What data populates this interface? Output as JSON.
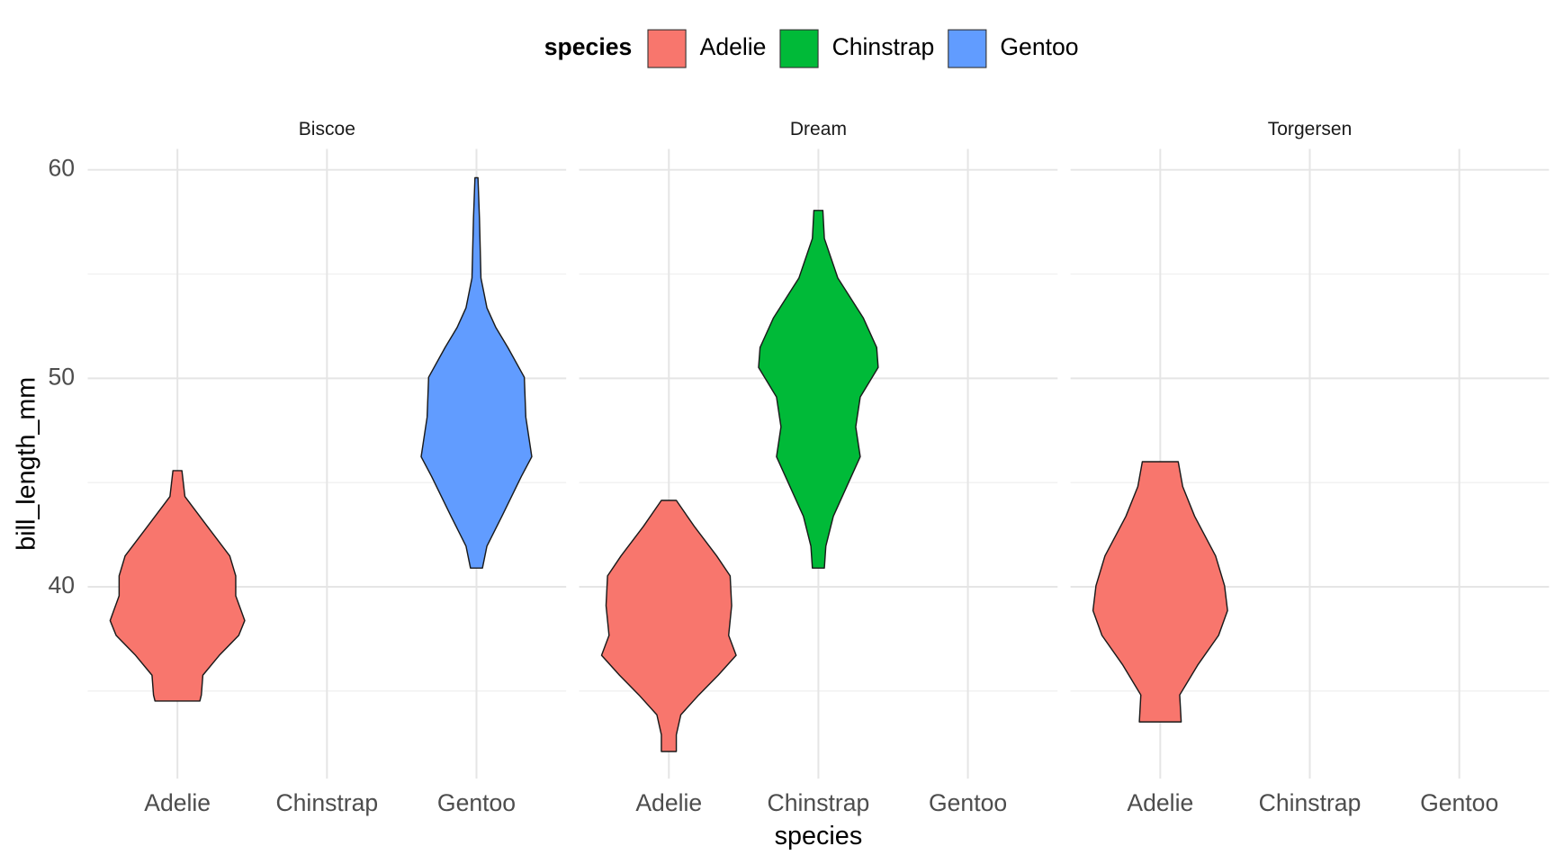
{
  "chart_data": {
    "type": "violin",
    "legend_title": "species",
    "x_label": "species",
    "y_label": "bill_length_mm",
    "categories": [
      "Adelie",
      "Chinstrap",
      "Gentoo"
    ],
    "series": [
      {
        "name": "Adelie",
        "color": "#F8766D"
      },
      {
        "name": "Chinstrap",
        "color": "#00BA38"
      },
      {
        "name": "Gentoo",
        "color": "#619CFF"
      }
    ],
    "ylim": [
      30.8,
      61
    ],
    "yticks": [
      40,
      50,
      60
    ],
    "minor_yticks": [
      35,
      45,
      55
    ],
    "grid": true,
    "legend_position": "top",
    "facets": [
      {
        "title": "Biscoe",
        "violins": [
          {
            "species": "Adelie",
            "y": [
              45.57,
              44.33,
              42.9,
              41.48,
              40.52,
              39.57,
              38.38,
              37.67,
              36.71,
              35.76,
              34.81,
              34.52
            ],
            "width": [
              0.03,
              0.05,
              0.2,
              0.35,
              0.39,
              0.39,
              0.45,
              0.41,
              0.28,
              0.17,
              0.16,
              0.15
            ]
          },
          {
            "species": "Gentoo",
            "y": [
              59.62,
              57.67,
              54.81,
              53.38,
              52.43,
              51.48,
              50.05,
              48.14,
              46.24,
              45.29,
              43.38,
              41.95,
              40.9
            ],
            "width": [
              0.01,
              0.02,
              0.03,
              0.07,
              0.13,
              0.21,
              0.32,
              0.33,
              0.37,
              0.3,
              0.17,
              0.07,
              0.04
            ]
          }
        ]
      },
      {
        "title": "Dream",
        "violins": [
          {
            "species": "Adelie",
            "y": [
              44.14,
              42.9,
              41.48,
              40.52,
              39.1,
              37.67,
              36.71,
              35.76,
              34.81,
              33.86,
              32.9,
              32.1
            ],
            "width": [
              0.05,
              0.17,
              0.32,
              0.41,
              0.42,
              0.4,
              0.45,
              0.33,
              0.2,
              0.08,
              0.05,
              0.05
            ]
          },
          {
            "species": "Chinstrap",
            "y": [
              58.05,
              56.71,
              54.81,
              52.9,
              51.48,
              50.52,
              49.1,
              47.67,
              46.24,
              44.81,
              43.38,
              41.95,
              40.9
            ],
            "width": [
              0.03,
              0.04,
              0.13,
              0.3,
              0.39,
              0.4,
              0.28,
              0.25,
              0.28,
              0.19,
              0.1,
              0.05,
              0.04
            ]
          }
        ]
      },
      {
        "title": "Torgersen",
        "violins": [
          {
            "species": "Adelie",
            "y": [
              46.0,
              44.81,
              43.38,
              41.48,
              40.05,
              38.86,
              37.67,
              36.24,
              34.81,
              33.52
            ],
            "width": [
              0.12,
              0.15,
              0.23,
              0.37,
              0.43,
              0.45,
              0.39,
              0.25,
              0.13,
              0.14
            ]
          }
        ]
      }
    ]
  }
}
